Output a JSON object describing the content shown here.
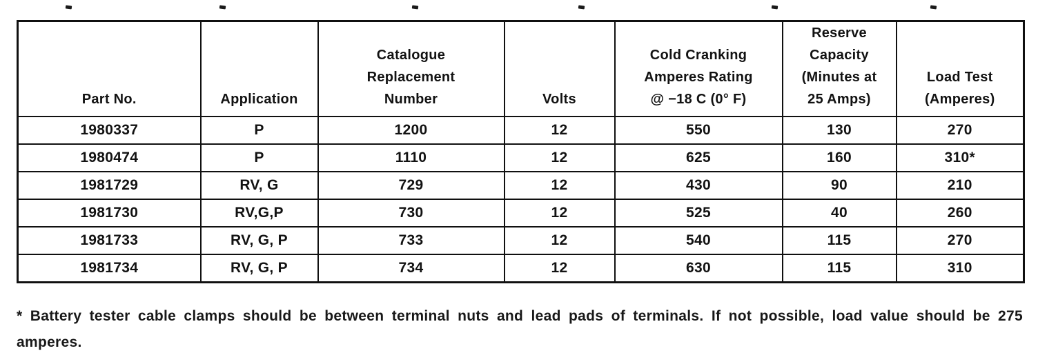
{
  "table": {
    "headers": [
      "Part No.",
      "Application",
      "Catalogue\nReplacement\nNumber",
      "Volts",
      "Cold Cranking\nAmperes Rating\n@ −18 C (0° F)",
      "Reserve\nCapacity\n(Minutes at\n25 Amps)",
      "Load Test\n(Amperes)"
    ],
    "rows": [
      [
        "1980337",
        "P",
        "1200",
        "12",
        "550",
        "130",
        "270"
      ],
      [
        "1980474",
        "P",
        "1110",
        "12",
        "625",
        "160",
        "310*"
      ],
      [
        "1981729",
        "RV, G",
        "729",
        "12",
        "430",
        "90",
        "210"
      ],
      [
        "1981730",
        "RV,G,P",
        "730",
        "12",
        "525",
        "40",
        "260"
      ],
      [
        "1981733",
        "RV, G, P",
        "733",
        "12",
        "540",
        "115",
        "270"
      ],
      [
        "1981734",
        "RV, G, P",
        "734",
        "12",
        "630",
        "115",
        "310"
      ]
    ]
  },
  "footnote": "* Battery tester cable clamps should be between terminal nuts and lead pads of terminals. If not possible, load value should be 275 amperes."
}
